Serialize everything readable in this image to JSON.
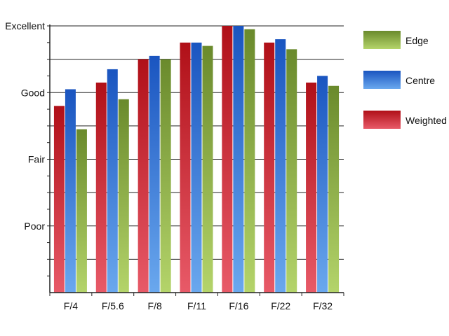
{
  "chart_data": {
    "type": "bar",
    "title": "",
    "xlabel": "",
    "ylabel": "",
    "categories": [
      "F/4",
      "F/5.6",
      "F/8",
      "F/11",
      "F/16",
      "F/22",
      "F/32"
    ],
    "y_ticks": [
      {
        "label": "Poor",
        "value": 2
      },
      {
        "label": "Fair",
        "value": 4
      },
      {
        "label": "Good",
        "value": 6
      },
      {
        "label": "Excellent",
        "value": 8
      }
    ],
    "ylim": [
      0,
      8
    ],
    "grid": true,
    "legend_position": "right",
    "series": [
      {
        "name": "Weighted",
        "color_top": "#b01018",
        "color_bottom": "#e85a68",
        "values": [
          5.6,
          6.3,
          7.0,
          7.5,
          8.0,
          7.5,
          6.3
        ]
      },
      {
        "name": "Centre",
        "color_top": "#1a55c0",
        "color_bottom": "#6aa8ee",
        "values": [
          6.1,
          6.7,
          7.1,
          7.5,
          8.0,
          7.6,
          6.5
        ]
      },
      {
        "name": "Edge",
        "color_top": "#6a8a2c",
        "color_bottom": "#b4d46a",
        "values": [
          4.9,
          5.8,
          7.0,
          7.4,
          7.9,
          7.3,
          6.2
        ]
      }
    ],
    "legend_order": [
      "Edge",
      "Centre",
      "Weighted"
    ]
  }
}
